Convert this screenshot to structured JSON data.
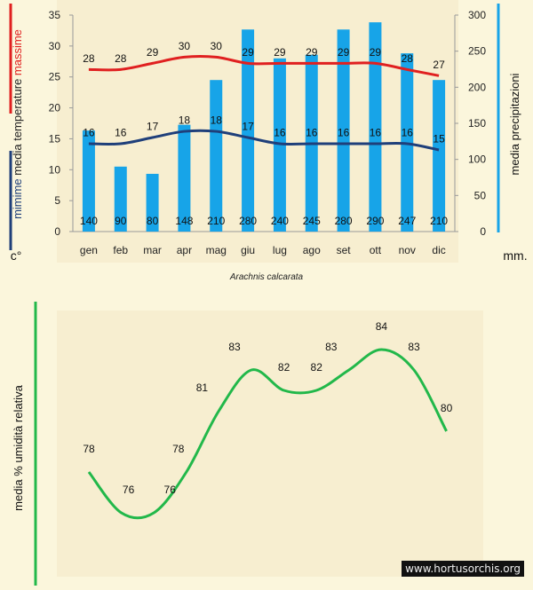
{
  "colors": {
    "page_bg": "#fbf6dc",
    "plot_bg": "#f7eed0",
    "bar": "#17a4e8",
    "max_line": "#e02020",
    "min_line": "#1f3f7a",
    "humidity_line": "#22b84a",
    "left_axis_lines": [
      "#e02020",
      "#1f3f7a"
    ],
    "right_axis_line": "#17a4e8"
  },
  "chart_data": [
    {
      "type": "bar",
      "title": "Arachnis calcarata",
      "categories": [
        "gen",
        "feb",
        "mar",
        "apr",
        "mag",
        "giu",
        "lug",
        "ago",
        "set",
        "ott",
        "nov",
        "dic"
      ],
      "y_left": {
        "label_parts": [
          "mimime",
          "media  temperature",
          "massime"
        ],
        "unit": "c°",
        "ylim": [
          0,
          35
        ],
        "ticks": [
          0,
          5,
          10,
          15,
          20,
          25,
          30,
          35
        ]
      },
      "y_right": {
        "label": "media  precipitazioni",
        "unit": "mm.",
        "ylim": [
          0,
          300
        ],
        "ticks": [
          0,
          50,
          100,
          150,
          200,
          250,
          300
        ]
      },
      "series": [
        {
          "type": "bar",
          "axis": "right",
          "values": [
            140,
            90,
            80,
            148,
            210,
            280,
            240,
            245,
            280,
            290,
            247,
            210
          ]
        },
        {
          "type": "line",
          "axis": "left",
          "values": [
            28,
            28,
            29,
            30,
            30,
            29,
            29,
            29,
            29,
            29,
            28,
            27
          ]
        },
        {
          "type": "line",
          "axis": "left",
          "values": [
            16,
            16,
            17,
            18,
            18,
            17,
            16,
            16,
            16,
            16,
            16,
            15
          ]
        }
      ]
    },
    {
      "type": "line",
      "ylabel": "media %  umidità relativa",
      "values": [
        78,
        76,
        76,
        78,
        81,
        83,
        82,
        82,
        83,
        84,
        83,
        80
      ]
    }
  ],
  "watermark": "www.hortusorchis.org"
}
